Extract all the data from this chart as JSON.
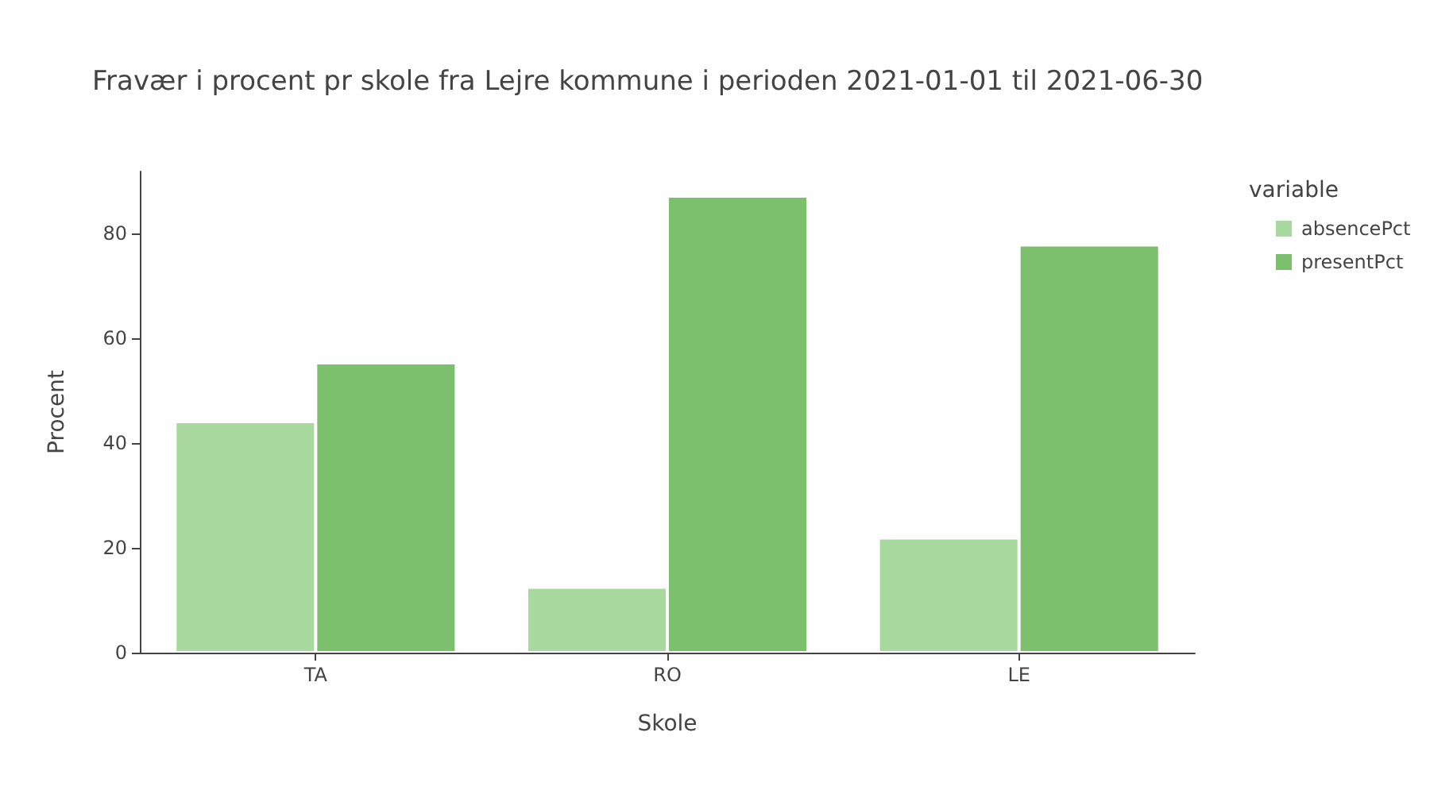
{
  "chart_data": {
    "type": "bar",
    "title": "Fravær i procent pr skole fra Lejre kommune i perioden 2021-01-01 til 2021-06-30",
    "xlabel": "Skole",
    "ylabel": "Procent",
    "legend_title": "variable",
    "categories": [
      "TA",
      "RO",
      "LE"
    ],
    "series": [
      {
        "name": "absencePct",
        "color": "#a8d99e",
        "values": [
          44.1,
          12.5,
          21.9
        ]
      },
      {
        "name": "presentPct",
        "color": "#7cc06e",
        "values": [
          55.3,
          87.1,
          77.8
        ]
      }
    ],
    "ylim": [
      0,
      91.8
    ],
    "yticks": [
      0,
      20,
      40,
      60,
      80
    ],
    "grid": false,
    "legend": "top right"
  }
}
